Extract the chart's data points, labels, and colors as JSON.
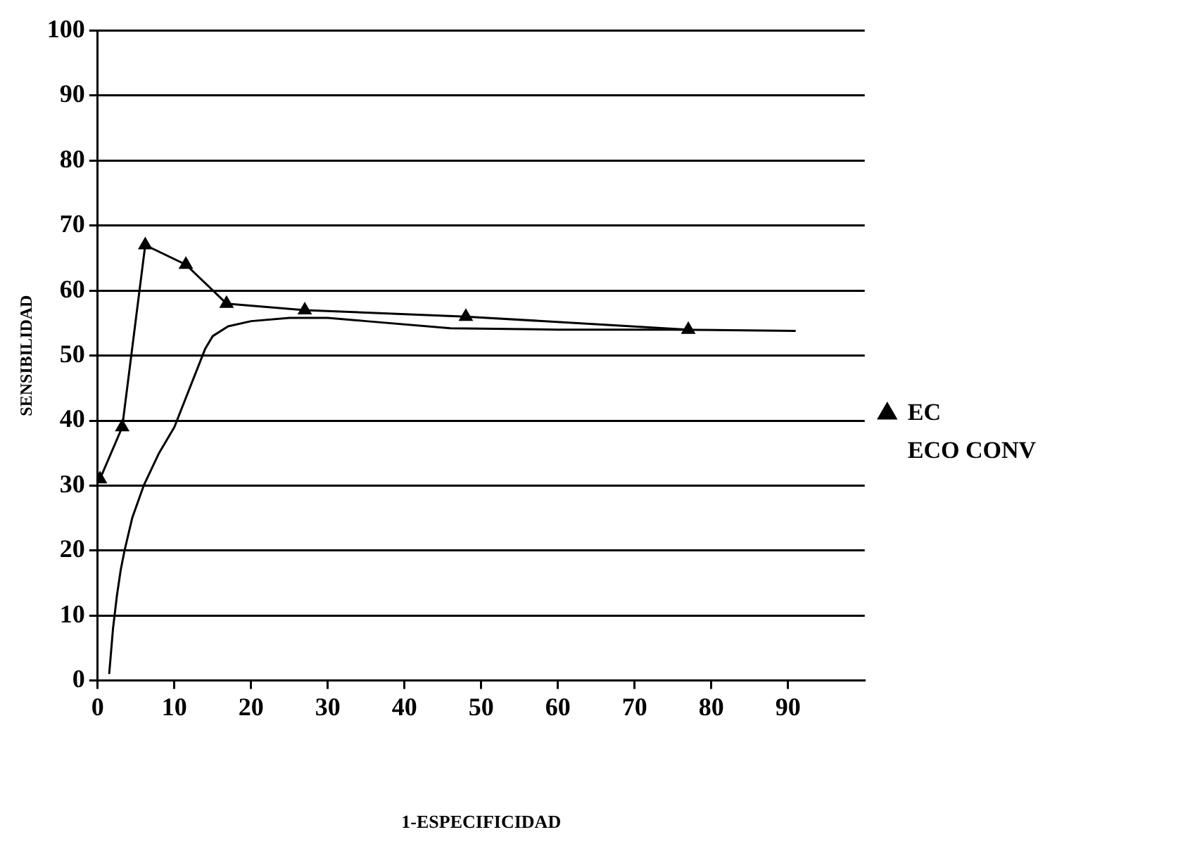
{
  "chart_data": {
    "type": "line",
    "xlabel": "1-ESPECIFICIDAD",
    "ylabel": "SENSIBILIDAD",
    "xlim": [
      0,
      100
    ],
    "ylim": [
      0,
      100
    ],
    "xticks": [
      0,
      10,
      20,
      30,
      40,
      50,
      60,
      70,
      80,
      90
    ],
    "yticks": [
      0,
      10,
      20,
      30,
      40,
      50,
      60,
      70,
      80,
      90,
      100
    ],
    "grid": "y",
    "legend": "right",
    "line_style": "solid",
    "series": [
      {
        "name": "EC",
        "color": "#000000",
        "marker": "triangle",
        "x": [
          0.3,
          3.2,
          6.2,
          11.5,
          16.8,
          27,
          48,
          77
        ],
        "values": [
          31,
          39,
          67,
          64,
          58,
          57,
          56,
          54
        ]
      },
      {
        "name": "ECO CONV",
        "color": "#000000",
        "marker": "none",
        "x": [
          1.5,
          2,
          2.5,
          3,
          3.5,
          4.5,
          6,
          8,
          10,
          11,
          12,
          13,
          14,
          15,
          17,
          20,
          25,
          30,
          35,
          46,
          60,
          75,
          91
        ],
        "values": [
          1,
          8,
          13,
          17,
          20,
          25,
          30,
          35,
          39,
          42,
          45,
          48,
          51,
          53,
          54.5,
          55.3,
          55.8,
          55.8,
          55.3,
          54.2,
          54,
          54,
          53.8
        ]
      }
    ]
  }
}
